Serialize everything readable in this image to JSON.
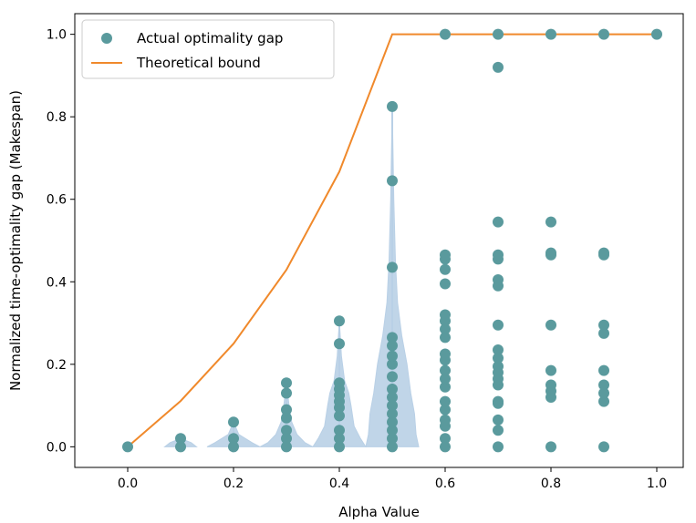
{
  "chart_data": {
    "type": "scatter",
    "xlabel": "Alpha Value",
    "ylabel": "Normalized time-optimality gap (Makespan)",
    "xlim": [
      -0.1,
      1.05
    ],
    "ylim": [
      -0.05,
      1.05
    ],
    "x_ticks": [
      "0.0",
      "0.2",
      "0.4",
      "0.6",
      "0.8",
      "1.0"
    ],
    "y_ticks": [
      "0.0",
      "0.2",
      "0.4",
      "0.6",
      "0.8",
      "1.0"
    ],
    "legend_position": "upper-left",
    "colors": {
      "scatter": "#5a9a9d",
      "line": "#f0892b",
      "violin": "#b9d0e6"
    },
    "series": [
      {
        "name": "Actual optimality gap",
        "kind": "scatter",
        "points": [
          [
            0.0,
            0.0
          ],
          [
            0.1,
            0.0
          ],
          [
            0.1,
            0.02
          ],
          [
            0.2,
            0.0
          ],
          [
            0.2,
            0.02
          ],
          [
            0.2,
            0.06
          ],
          [
            0.3,
            0.0
          ],
          [
            0.3,
            0.02
          ],
          [
            0.3,
            0.04
          ],
          [
            0.3,
            0.07
          ],
          [
            0.3,
            0.09
          ],
          [
            0.3,
            0.13
          ],
          [
            0.3,
            0.155
          ],
          [
            0.4,
            0.0
          ],
          [
            0.4,
            0.02
          ],
          [
            0.4,
            0.04
          ],
          [
            0.4,
            0.075
          ],
          [
            0.4,
            0.095
          ],
          [
            0.4,
            0.11
          ],
          [
            0.4,
            0.125
          ],
          [
            0.4,
            0.14
          ],
          [
            0.4,
            0.155
          ],
          [
            0.4,
            0.25
          ],
          [
            0.4,
            0.305
          ],
          [
            0.5,
            0.0
          ],
          [
            0.5,
            0.02
          ],
          [
            0.5,
            0.04
          ],
          [
            0.5,
            0.06
          ],
          [
            0.5,
            0.08
          ],
          [
            0.5,
            0.1
          ],
          [
            0.5,
            0.12
          ],
          [
            0.5,
            0.14
          ],
          [
            0.5,
            0.17
          ],
          [
            0.5,
            0.2
          ],
          [
            0.5,
            0.22
          ],
          [
            0.5,
            0.245
          ],
          [
            0.5,
            0.265
          ],
          [
            0.5,
            0.435
          ],
          [
            0.5,
            0.645
          ],
          [
            0.5,
            0.825
          ],
          [
            0.6,
            0.0
          ],
          [
            0.6,
            0.02
          ],
          [
            0.6,
            0.05
          ],
          [
            0.6,
            0.065
          ],
          [
            0.6,
            0.09
          ],
          [
            0.6,
            0.11
          ],
          [
            0.6,
            0.145
          ],
          [
            0.6,
            0.165
          ],
          [
            0.6,
            0.185
          ],
          [
            0.6,
            0.21
          ],
          [
            0.6,
            0.225
          ],
          [
            0.6,
            0.265
          ],
          [
            0.6,
            0.285
          ],
          [
            0.6,
            0.305
          ],
          [
            0.6,
            0.32
          ],
          [
            0.6,
            0.395
          ],
          [
            0.6,
            0.43
          ],
          [
            0.6,
            0.455
          ],
          [
            0.6,
            0.465
          ],
          [
            0.6,
            1.0
          ],
          [
            0.7,
            0.0
          ],
          [
            0.7,
            0.04
          ],
          [
            0.7,
            0.065
          ],
          [
            0.7,
            0.105
          ],
          [
            0.7,
            0.11
          ],
          [
            0.7,
            0.15
          ],
          [
            0.7,
            0.165
          ],
          [
            0.7,
            0.18
          ],
          [
            0.7,
            0.195
          ],
          [
            0.7,
            0.215
          ],
          [
            0.7,
            0.235
          ],
          [
            0.7,
            0.295
          ],
          [
            0.7,
            0.39
          ],
          [
            0.7,
            0.405
          ],
          [
            0.7,
            0.455
          ],
          [
            0.7,
            0.465
          ],
          [
            0.7,
            0.545
          ],
          [
            0.7,
            0.92
          ],
          [
            0.7,
            1.0
          ],
          [
            0.8,
            0.0
          ],
          [
            0.8,
            0.12
          ],
          [
            0.8,
            0.135
          ],
          [
            0.8,
            0.15
          ],
          [
            0.8,
            0.185
          ],
          [
            0.8,
            0.295
          ],
          [
            0.8,
            0.465
          ],
          [
            0.8,
            0.47
          ],
          [
            0.8,
            0.545
          ],
          [
            0.8,
            1.0
          ],
          [
            0.9,
            0.0
          ],
          [
            0.9,
            0.11
          ],
          [
            0.9,
            0.13
          ],
          [
            0.9,
            0.15
          ],
          [
            0.9,
            0.185
          ],
          [
            0.9,
            0.275
          ],
          [
            0.9,
            0.295
          ],
          [
            0.9,
            0.465
          ],
          [
            0.9,
            0.47
          ],
          [
            0.9,
            1.0
          ],
          [
            1.0,
            1.0
          ]
        ]
      },
      {
        "name": "Theoretical bound",
        "kind": "line",
        "points": [
          [
            0.0,
            0.0
          ],
          [
            0.1,
            0.111
          ],
          [
            0.2,
            0.25
          ],
          [
            0.3,
            0.429
          ],
          [
            0.4,
            0.667
          ],
          [
            0.5,
            1.0
          ],
          [
            0.6,
            1.0
          ],
          [
            0.7,
            1.0
          ],
          [
            0.8,
            1.0
          ],
          [
            0.9,
            1.0
          ],
          [
            1.0,
            1.0
          ]
        ]
      }
    ],
    "violins": [
      {
        "x": 0.1,
        "profile": [
          [
            0.0,
            0.03
          ],
          [
            0.01,
            0.02
          ],
          [
            0.02,
            0.0
          ]
        ]
      },
      {
        "x": 0.2,
        "profile": [
          [
            0.0,
            0.05
          ],
          [
            0.01,
            0.035
          ],
          [
            0.03,
            0.01
          ],
          [
            0.06,
            0.0
          ]
        ]
      },
      {
        "x": 0.3,
        "profile": [
          [
            0.0,
            0.05
          ],
          [
            0.01,
            0.035
          ],
          [
            0.03,
            0.02
          ],
          [
            0.06,
            0.01
          ],
          [
            0.1,
            0.005
          ],
          [
            0.155,
            0.0
          ]
        ]
      },
      {
        "x": 0.4,
        "profile": [
          [
            0.0,
            0.05
          ],
          [
            0.02,
            0.04
          ],
          [
            0.05,
            0.028
          ],
          [
            0.1,
            0.022
          ],
          [
            0.13,
            0.018
          ],
          [
            0.16,
            0.01
          ],
          [
            0.22,
            0.004
          ],
          [
            0.305,
            0.0
          ]
        ]
      },
      {
        "x": 0.5,
        "profile": [
          [
            0.0,
            0.05
          ],
          [
            0.03,
            0.045
          ],
          [
            0.08,
            0.042
          ],
          [
            0.13,
            0.035
          ],
          [
            0.2,
            0.028
          ],
          [
            0.27,
            0.018
          ],
          [
            0.35,
            0.01
          ],
          [
            0.45,
            0.006
          ],
          [
            0.6,
            0.003
          ],
          [
            0.825,
            0.0
          ]
        ]
      }
    ]
  }
}
